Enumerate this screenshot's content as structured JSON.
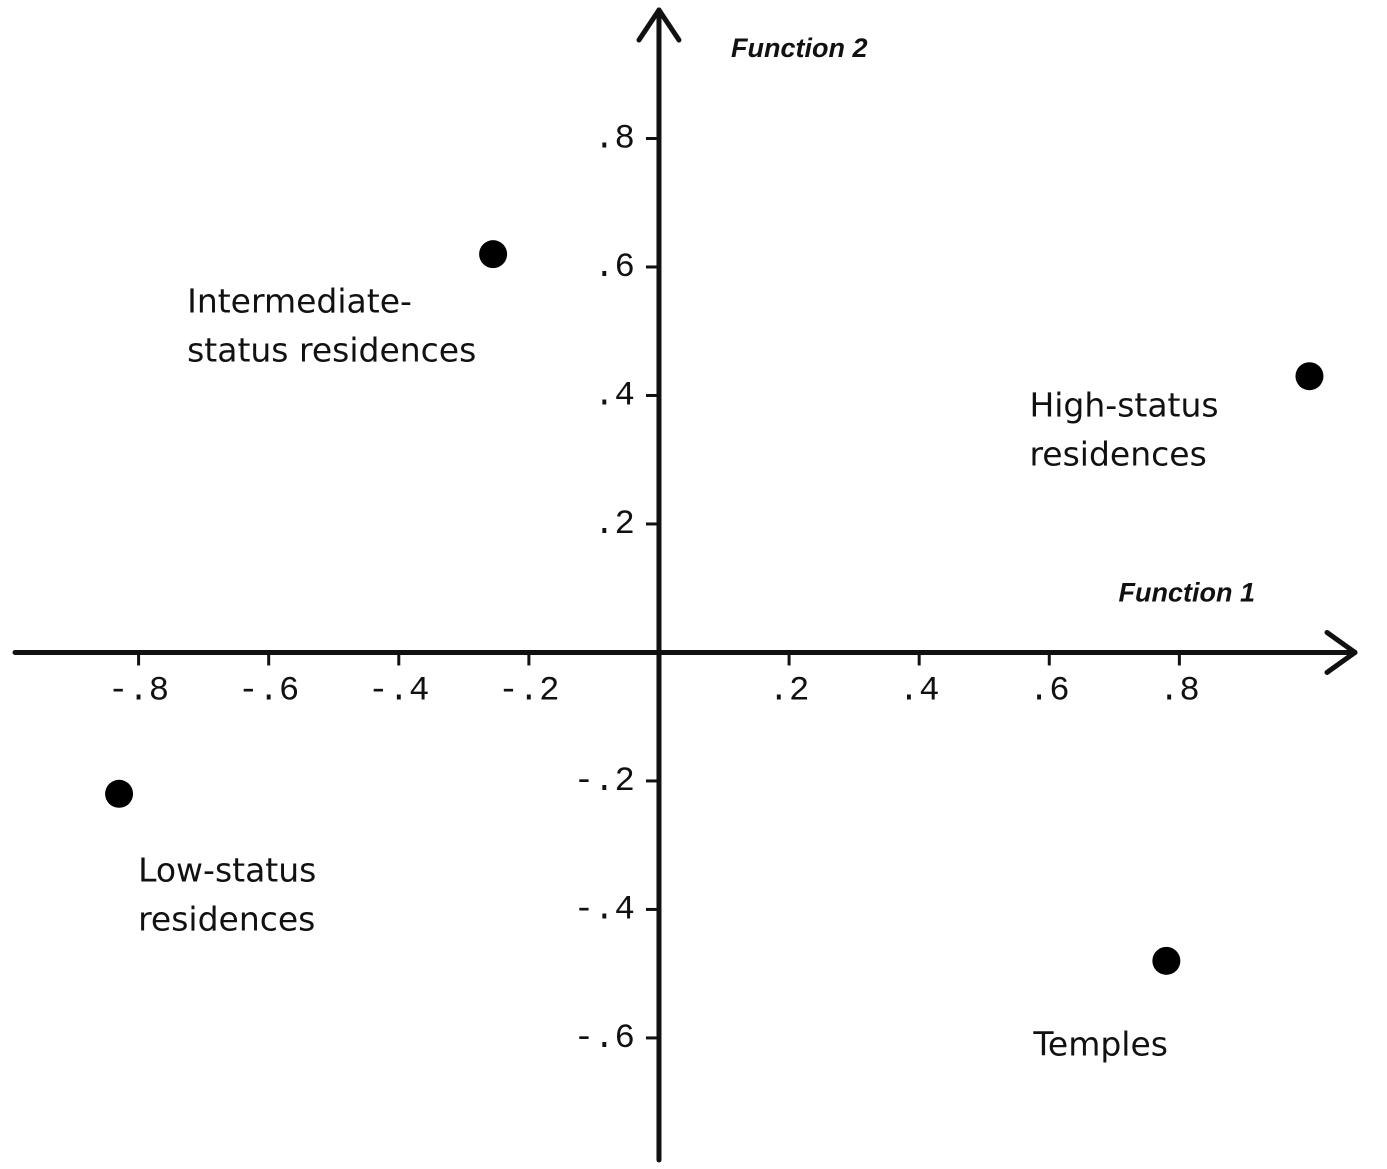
{
  "chart_data": {
    "type": "scatter",
    "x_label": "Function 1",
    "y_label": "Function 2",
    "x": [
      -0.255,
      1.0,
      -0.83,
      0.78
    ],
    "values": [
      0.62,
      0.43,
      -0.22,
      -0.48
    ],
    "labels": [
      [
        "Intermediate-",
        "status residences"
      ],
      [
        "High-status",
        "residences"
      ],
      [
        "Low-status",
        "residences"
      ],
      [
        "Temples"
      ]
    ],
    "color": "#000000",
    "xlim": [
      -0.99,
      1.07
    ],
    "ylim": [
      -0.79,
      1.0
    ],
    "xticks": [
      {
        "value": -0.8,
        "label": "-.8"
      },
      {
        "value": -0.6,
        "label": "-.6"
      },
      {
        "value": -0.4,
        "label": "-.4"
      },
      {
        "value": -0.2,
        "label": "-.2"
      },
      {
        "value": 0.2,
        "label": ".2"
      },
      {
        "value": 0.4,
        "label": ".4"
      },
      {
        "value": 0.6,
        "label": ".6"
      },
      {
        "value": 0.8,
        "label": ".8"
      }
    ],
    "yticks": [
      {
        "value": -0.6,
        "label": "-.6"
      },
      {
        "value": -0.4,
        "label": "-.4"
      },
      {
        "value": -0.2,
        "label": "-.2"
      },
      {
        "value": 0.2,
        "label": ".2"
      },
      {
        "value": 0.4,
        "label": ".4"
      },
      {
        "value": 0.6,
        "label": ".6"
      },
      {
        "value": 0.8,
        "label": ".8"
      }
    ]
  }
}
